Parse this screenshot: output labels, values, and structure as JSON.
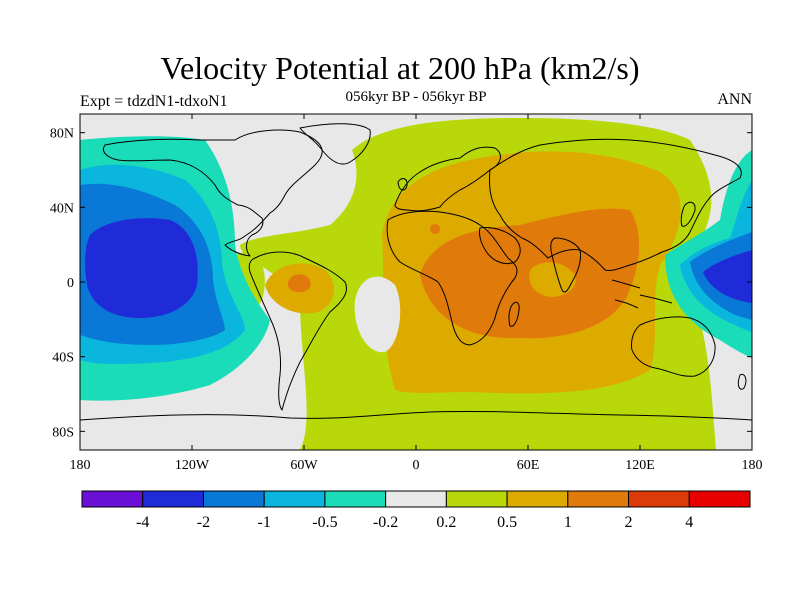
{
  "header": {
    "title": "Velocity Potential at 200 hPa (km2/s)",
    "subtitle": "056kyr BP - 056kyr BP",
    "left_label": "Expt = tdzdN1-tdxoN1",
    "right_label": "ANN"
  },
  "map": {
    "projection": "cylindrical-equidistant",
    "lon_range": [
      -180,
      180
    ],
    "lat_range": [
      -90,
      90
    ],
    "x_ticks": [
      {
        "value": -180,
        "label": "180"
      },
      {
        "value": -120,
        "label": "120W"
      },
      {
        "value": -60,
        "label": "60W"
      },
      {
        "value": 0,
        "label": "0"
      },
      {
        "value": 60,
        "label": "60E"
      },
      {
        "value": 120,
        "label": "120E"
      },
      {
        "value": 180,
        "label": "180"
      }
    ],
    "y_ticks": [
      {
        "value": 80,
        "label": "80N"
      },
      {
        "value": 40,
        "label": "40N"
      },
      {
        "value": 0,
        "label": "0"
      },
      {
        "value": -40,
        "label": "40S"
      },
      {
        "value": -80,
        "label": "80S"
      }
    ]
  },
  "colorbar": {
    "colors": [
      "#6a0fd6",
      "#1f2bd9",
      "#0a78d6",
      "#0ab6dd",
      "#1adcb9",
      "#e8e8e8",
      "#b8d80a",
      "#ddaa00",
      "#e07a0a",
      "#dd3a0a",
      "#e80000"
    ],
    "labels": [
      "-4",
      "-2",
      "-1",
      "-0.5",
      "-0.2",
      "0.2",
      "0.5",
      "1",
      "2",
      "4"
    ]
  },
  "colors": {
    "land_outline": "#000000",
    "neutral": "#e8e8e8",
    "weak_pos": "#b8d80a",
    "mod_pos": "#ddaa00",
    "strong_pos": "#e07a0a",
    "weak_neg": "#1adcb9",
    "mod_neg": "#0ab6dd",
    "strong_neg": "#0a78d6",
    "very_strong_neg": "#1f2bd9"
  }
}
